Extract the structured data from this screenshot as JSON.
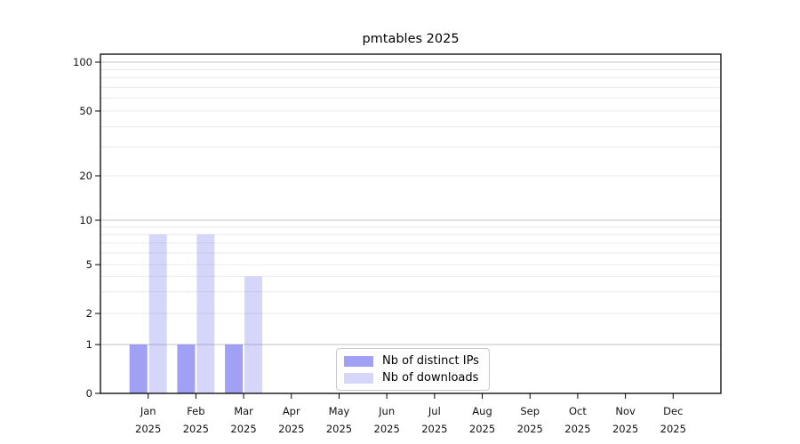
{
  "title": "pmtables 2025",
  "chart_data": {
    "type": "bar",
    "title": "pmtables 2025",
    "categories": [
      "Jan 2025",
      "Feb 2025",
      "Mar 2025",
      "Apr 2025",
      "May 2025",
      "Jun 2025",
      "Jul 2025",
      "Aug 2025",
      "Sep 2025",
      "Oct 2025",
      "Nov 2025",
      "Dec 2025"
    ],
    "x_tick_labels": [
      [
        "Jan",
        "2025"
      ],
      [
        "Feb",
        "2025"
      ],
      [
        "Mar",
        "2025"
      ],
      [
        "Apr",
        "2025"
      ],
      [
        "May",
        "2025"
      ],
      [
        "Jun",
        "2025"
      ],
      [
        "Jul",
        "2025"
      ],
      [
        "Aug",
        "2025"
      ],
      [
        "Sep",
        "2025"
      ],
      [
        "Oct",
        "2025"
      ],
      [
        "Nov",
        "2025"
      ],
      [
        "Dec",
        "2025"
      ]
    ],
    "series": [
      {
        "name": "Nb of distinct IPs",
        "color": "rgba(102,102,238,0.62)",
        "values": [
          1,
          1,
          1,
          0,
          0,
          0,
          0,
          0,
          0,
          0,
          0,
          0
        ]
      },
      {
        "name": "Nb of downloads",
        "color": "rgba(102,102,238,0.27)",
        "values": [
          8,
          8,
          4,
          0,
          0,
          0,
          0,
          0,
          0,
          0,
          0,
          0
        ]
      }
    ],
    "y_ticks": [
      0,
      1,
      2,
      5,
      10,
      20,
      50,
      100
    ],
    "ylim": [
      0,
      110
    ],
    "y_scale": "log above 1, linear 0-1",
    "grid": {
      "major": [
        1,
        10,
        100
      ],
      "minor": [
        2,
        3,
        4,
        5,
        6,
        7,
        8,
        9,
        20,
        30,
        40,
        50,
        60,
        70,
        80,
        90
      ]
    },
    "legend": {
      "position": "lower center inside axes",
      "entries": [
        "Nb of distinct IPs",
        "Nb of downloads"
      ]
    }
  },
  "colors": {
    "bar_base": "#6666ee",
    "grid_major": "#c3c3c3",
    "grid_minor": "#e9e9e9",
    "spine": "#000000",
    "tick": "#000000",
    "background": "#ffffff"
  }
}
